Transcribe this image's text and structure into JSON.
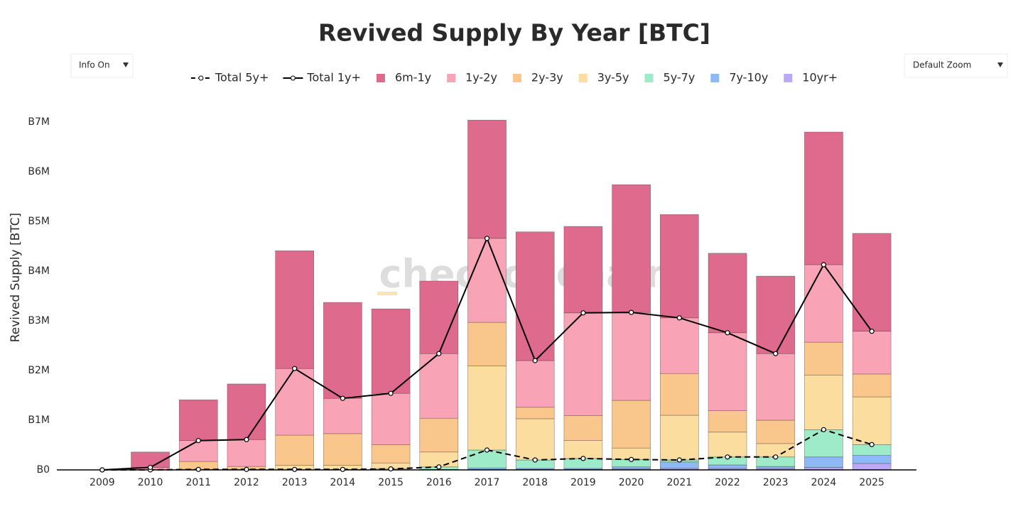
{
  "controls": {
    "info": "Info On",
    "zoom": "Default Zoom"
  },
  "watermark": "checkonchain",
  "chart_data": {
    "type": "bar",
    "stacked": true,
    "title": "Revived Supply By Year [BTC]",
    "y_label": "Revived Supply [BTC]",
    "categories": [
      "2009",
      "2010",
      "2011",
      "2012",
      "2013",
      "2014",
      "2015",
      "2016",
      "2017",
      "2018",
      "2019",
      "2020",
      "2021",
      "2022",
      "2023",
      "2024",
      "2025"
    ],
    "ylim": [
      0,
      7500000
    ],
    "yticks": [
      {
        "value": 0,
        "label": "B0"
      },
      {
        "value": 1000000,
        "label": "B1M"
      },
      {
        "value": 2000000,
        "label": "B2M"
      },
      {
        "value": 3000000,
        "label": "B3M"
      },
      {
        "value": 4000000,
        "label": "B4M"
      },
      {
        "value": 5000000,
        "label": "B5M"
      },
      {
        "value": 6000000,
        "label": "B6M"
      },
      {
        "value": 7000000,
        "label": "B7M"
      }
    ],
    "grid": false,
    "series": [
      {
        "name": "Total 5y+",
        "type": "line",
        "dash": true,
        "color": "#000000",
        "values": [
          0,
          0,
          10000,
          10000,
          10000,
          10000,
          20000,
          60000,
          400000,
          200000,
          230000,
          210000,
          200000,
          260000,
          260000,
          810000,
          510000
        ]
      },
      {
        "name": "Total 1y+",
        "type": "line",
        "dash": false,
        "color": "#000000",
        "values": [
          0,
          50000,
          590000,
          610000,
          2040000,
          1440000,
          1540000,
          2340000,
          4660000,
          2200000,
          3160000,
          3170000,
          3060000,
          2760000,
          2340000,
          4130000,
          2790000
        ]
      },
      {
        "name": "6m-1y",
        "color": "#de6a8e",
        "values": [
          0,
          310000,
          820000,
          1120000,
          2370000,
          1930000,
          1700000,
          1460000,
          2380000,
          2590000,
          1740000,
          2570000,
          2080000,
          1600000,
          1560000,
          2670000,
          1970000
        ]
      },
      {
        "name": "1y-2y",
        "color": "#f9a3b6",
        "values": [
          0,
          50000,
          420000,
          540000,
          1340000,
          710000,
          1030000,
          1300000,
          1690000,
          940000,
          2070000,
          1770000,
          1120000,
          1570000,
          1340000,
          1560000,
          860000
        ]
      },
      {
        "name": "2y-3y",
        "color": "#f9c78b",
        "values": [
          0,
          0,
          160000,
          60000,
          610000,
          640000,
          370000,
          680000,
          880000,
          230000,
          500000,
          960000,
          840000,
          430000,
          470000,
          660000,
          460000
        ]
      },
      {
        "name": "3y-5y",
        "color": "#fbdd9f",
        "values": [
          0,
          0,
          10000,
          10000,
          90000,
          80000,
          120000,
          300000,
          1690000,
          830000,
          360000,
          230000,
          900000,
          500000,
          270000,
          1100000,
          960000
        ]
      },
      {
        "name": "5y-7y",
        "color": "#9debc8",
        "values": [
          0,
          0,
          0,
          0,
          0,
          10000,
          20000,
          50000,
          360000,
          170000,
          200000,
          150000,
          40000,
          160000,
          190000,
          550000,
          220000
        ]
      },
      {
        "name": "7y-10y",
        "color": "#8fb8f6",
        "values": [
          0,
          0,
          0,
          0,
          0,
          0,
          0,
          10000,
          30000,
          20000,
          20000,
          40000,
          130000,
          70000,
          40000,
          210000,
          160000
        ]
      },
      {
        "name": "10yr+",
        "color": "#bba9f5",
        "values": [
          0,
          0,
          0,
          0,
          0,
          0,
          0,
          0,
          10000,
          10000,
          10000,
          20000,
          30000,
          30000,
          30000,
          50000,
          130000
        ]
      }
    ]
  }
}
